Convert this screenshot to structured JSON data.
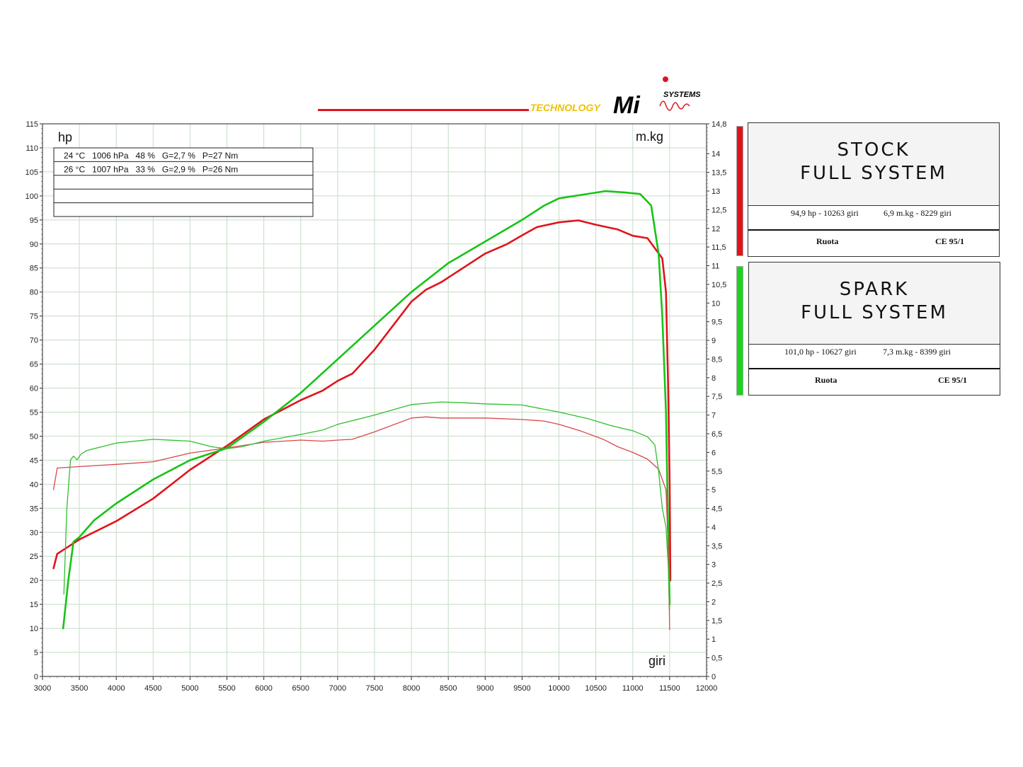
{
  "logo": {
    "technology": "TECHNOLOGY",
    "mi": "Mi",
    "systems": "SYSTEMS"
  },
  "chart_data": {
    "type": "line",
    "title": "",
    "y_left_label": "hp",
    "y_right_label": "m.kg",
    "x_label": "giri",
    "xlim": [
      3000,
      12000
    ],
    "ylim_left": [
      0,
      115
    ],
    "ylim_right": [
      0,
      14.8
    ],
    "x_ticks": [
      3000,
      3500,
      4000,
      4500,
      5000,
      5500,
      6000,
      6500,
      7000,
      7500,
      8000,
      8500,
      9000,
      9500,
      10000,
      10500,
      11000,
      11500,
      12000
    ],
    "y_left_ticks": [
      0,
      5,
      10,
      15,
      20,
      25,
      30,
      35,
      40,
      45,
      50,
      55,
      60,
      65,
      70,
      75,
      80,
      85,
      90,
      95,
      100,
      105,
      110,
      115
    ],
    "y_right_ticks": [
      "0",
      "0,5",
      "1",
      "1,5",
      "2",
      "2,5",
      "3",
      "3,5",
      "4",
      "4,5",
      "5",
      "5,5",
      "6",
      "6,5",
      "7",
      "7,5",
      "8",
      "8,5",
      "9",
      "9,5",
      "10",
      "10,5",
      "11",
      "11,5",
      "12",
      "12,5",
      "13",
      "13,5",
      "14",
      "14,8"
    ],
    "info_rows": [
      "24 °C   1006 hPa   48 %   G=2,7 %   P=27 Nm",
      "26 °C   1007 hPa   33 %   G=2,9 %   P=26 Nm",
      "",
      "",
      ""
    ],
    "series": [
      {
        "name": "STOCK FULL SYSTEM",
        "kind": "power",
        "color": "#e0141c",
        "axis": "left",
        "x": [
          3150,
          3200,
          3500,
          4000,
          4500,
          5000,
          5500,
          6000,
          6500,
          6800,
          7000,
          7200,
          7500,
          7800,
          8000,
          8200,
          8400,
          8500,
          8700,
          9000,
          9300,
          9500,
          9700,
          10000,
          10263,
          10500,
          10800,
          11000,
          11200,
          11400,
          11450,
          11480,
          11500,
          11510
        ],
        "y": [
          22.5,
          25.5,
          28.5,
          32.3,
          37,
          43,
          48,
          53.5,
          57.5,
          59.5,
          61.5,
          63,
          68,
          74,
          78,
          80.5,
          82,
          83,
          85,
          88,
          90,
          91.8,
          93.5,
          94.5,
          94.9,
          94,
          93,
          91.7,
          91.2,
          87,
          80,
          60,
          40,
          20
        ]
      },
      {
        "name": "SPARK FULL SYSTEM",
        "kind": "power",
        "color": "#17c317",
        "axis": "left",
        "x": [
          3280,
          3350,
          3420,
          3500,
          3700,
          4000,
          4500,
          5000,
          5500,
          6000,
          6500,
          7000,
          7500,
          8000,
          8500,
          9000,
          9500,
          9800,
          10000,
          10300,
          10627,
          10900,
          11100,
          11250,
          11350,
          11400,
          11450,
          11480,
          11500
        ],
        "y": [
          10,
          20,
          28,
          29,
          32.5,
          36,
          41,
          45,
          47.5,
          53,
          59,
          66,
          73,
          80,
          86,
          90.5,
          95,
          98,
          99.5,
          100.2,
          101,
          100.7,
          100.4,
          98,
          88,
          75,
          55,
          30,
          15
        ]
      },
      {
        "name": "STOCK FULL SYSTEM",
        "kind": "torque",
        "color": "#d9474d",
        "axis": "right",
        "x": [
          3150,
          3200,
          3500,
          4000,
          4500,
          5000,
          5500,
          6000,
          6500,
          6800,
          7000,
          7200,
          7500,
          8000,
          8200,
          8400,
          8600,
          9000,
          9500,
          9800,
          10000,
          10300,
          10600,
          10800,
          11000,
          11200,
          11350,
          11450,
          11480,
          11500
        ],
        "y": [
          5.0,
          5.58,
          5.62,
          5.68,
          5.75,
          5.98,
          6.12,
          6.27,
          6.33,
          6.3,
          6.33,
          6.35,
          6.55,
          6.92,
          6.95,
          6.92,
          6.92,
          6.92,
          6.88,
          6.84,
          6.75,
          6.57,
          6.35,
          6.15,
          6.0,
          5.82,
          5.55,
          5.0,
          3.5,
          1.25
        ]
      },
      {
        "name": "SPARK FULL SYSTEM",
        "kind": "torque",
        "color": "#2fbf2f",
        "axis": "right",
        "x": [
          3290,
          3330,
          3380,
          3420,
          3470,
          3520,
          3600,
          4000,
          4500,
          5000,
          5300,
          5500,
          5700,
          6000,
          6500,
          6800,
          7000,
          7500,
          8000,
          8399,
          8700,
          9000,
          9500,
          10000,
          10400,
          10700,
          11000,
          11200,
          11300,
          11350,
          11400,
          11450,
          11480,
          11500
        ],
        "y": [
          2.2,
          4.5,
          5.8,
          5.9,
          5.8,
          5.95,
          6.05,
          6.25,
          6.35,
          6.3,
          6.15,
          6.1,
          6.15,
          6.3,
          6.48,
          6.6,
          6.75,
          7.0,
          7.28,
          7.35,
          7.33,
          7.3,
          7.27,
          7.08,
          6.9,
          6.72,
          6.58,
          6.42,
          6.2,
          5.5,
          4.5,
          4.0,
          3.0,
          1.8
        ]
      }
    ]
  },
  "legend": [
    {
      "color": "#e0141c",
      "title_line1": "STOCK",
      "title_line2": "FULL SYSTEM",
      "power_stat": "94,9 hp - 10263 giri",
      "torque_stat": "6,9 m.kg - 8229 giri",
      "foot_left": "Ruota",
      "foot_right": "CE 95/1"
    },
    {
      "color": "#1cd41c",
      "title_line1": "SPARK",
      "title_line2": "FULL SYSTEM",
      "power_stat": "101,0 hp - 10627 giri",
      "torque_stat": "7,3 m.kg - 8399 giri",
      "foot_left": "Ruota",
      "foot_right": "CE 95/1"
    }
  ]
}
